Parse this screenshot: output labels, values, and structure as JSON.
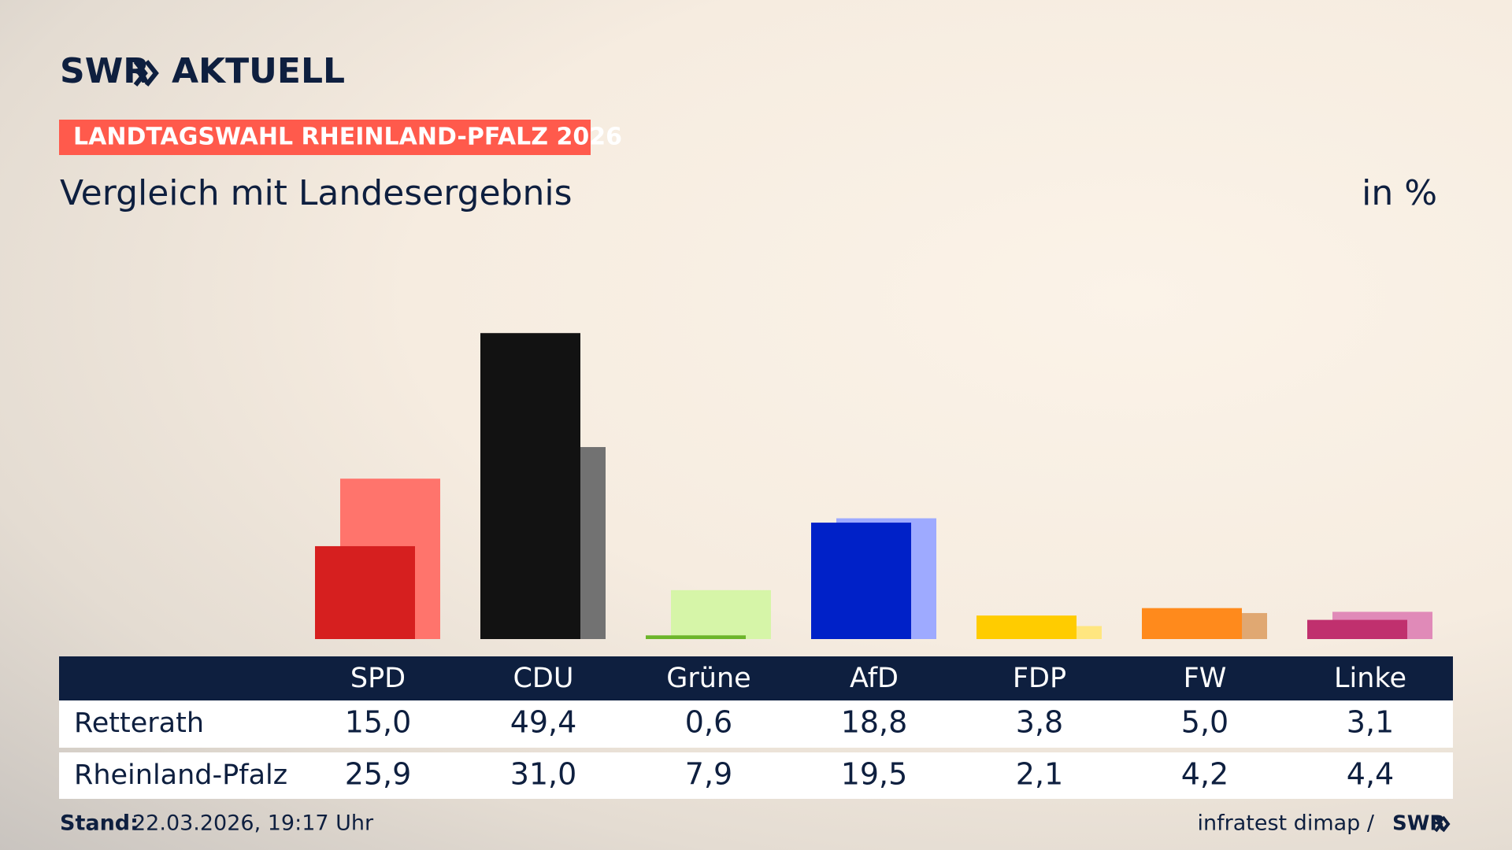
{
  "header": {
    "logo": "SWR",
    "logo_product": "AKTUELL",
    "badge": "LANDTAGSWAHL RHEINLAND-PFALZ 2026"
  },
  "chart_data": {
    "type": "bar",
    "title": "Vergleich mit Landesergebnis",
    "unit": "in %",
    "categories": [
      "SPD",
      "CDU",
      "Grüne",
      "AfD",
      "FDP",
      "FW",
      "Linke"
    ],
    "series": [
      {
        "name": "Retterath",
        "values": [
          15.0,
          49.4,
          0.6,
          18.8,
          3.8,
          5.0,
          3.1
        ],
        "value_labels": [
          "15,0",
          "49,4",
          "0,6",
          "18,8",
          "3,8",
          "5,0",
          "3,1"
        ],
        "colors": [
          "#d61f1f",
          "#121212",
          "#6cb52a",
          "#0021c8",
          "#ffcc00",
          "#ff8a1c",
          "#c0306e"
        ]
      },
      {
        "name": "Rheinland-Pfalz",
        "values": [
          25.9,
          31.0,
          7.9,
          19.5,
          2.1,
          4.2,
          4.4
        ],
        "value_labels": [
          "25,9",
          "31,0",
          "7,9",
          "19,5",
          "2,1",
          "4,2",
          "4,4"
        ],
        "colors": [
          "#ff746c",
          "#727272",
          "#d6f5a8",
          "#9eaaff",
          "#ffe680",
          "#e0a872",
          "#e08ab8"
        ]
      }
    ]
  },
  "footer": {
    "stand_label": "Stand:",
    "stand": "22.03.2026, 19:17 Uhr",
    "source": "infratest dimap /",
    "source_logo": "SWR"
  }
}
